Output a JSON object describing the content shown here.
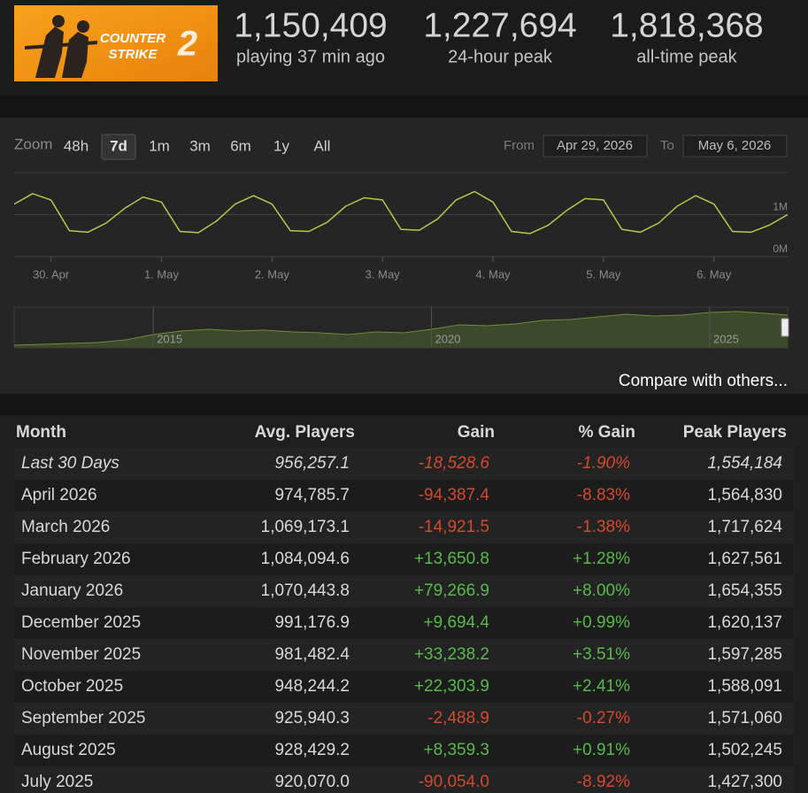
{
  "logo": {
    "line1": "COUNTER",
    "line2": "STRIKE",
    "mark": "2"
  },
  "stats": [
    {
      "value": "1,150,409",
      "label": "playing 37 min ago"
    },
    {
      "value": "1,227,694",
      "label": "24-hour peak"
    },
    {
      "value": "1,818,368",
      "label": "all-time peak"
    }
  ],
  "controls": {
    "zoom_label": "Zoom",
    "ranges": [
      "48h",
      "7d",
      "1m",
      "3m",
      "6m",
      "1y",
      "All"
    ],
    "selected": "7d",
    "from_label": "From",
    "from": "Apr 29, 2026",
    "to_label": "To",
    "to": "May 6, 2026"
  },
  "chart_data": [
    {
      "type": "line",
      "color": "#b3c94a",
      "grid": true,
      "xlim": [
        -8,
        160
      ],
      "xticks": [
        {
          "value": 0,
          "label": "30. Apr"
        },
        {
          "value": 24,
          "label": "1. May"
        },
        {
          "value": 48,
          "label": "2. May"
        },
        {
          "value": 72,
          "label": "3. May"
        },
        {
          "value": 96,
          "label": "4. May"
        },
        {
          "value": 120,
          "label": "5. May"
        },
        {
          "value": 144,
          "label": "6. May"
        }
      ],
      "ylim": [
        0,
        2000000
      ],
      "yticks": [
        {
          "value": 0,
          "label": "0M"
        },
        {
          "value": 1000000,
          "label": "1M"
        }
      ],
      "series": [
        {
          "x": [
            -8,
            -4,
            0,
            4,
            8,
            12,
            16,
            20,
            24,
            28,
            32,
            36,
            40,
            44,
            48,
            52,
            56,
            60,
            64,
            68,
            72,
            76,
            80,
            84,
            88,
            92,
            96,
            100,
            104,
            108,
            112,
            116,
            120,
            124,
            128,
            132,
            136,
            140,
            144,
            148,
            152,
            156,
            160
          ],
          "values": [
            1250000,
            1500000,
            1350000,
            620000,
            580000,
            800000,
            1150000,
            1420000,
            1300000,
            600000,
            570000,
            850000,
            1250000,
            1450000,
            1250000,
            620000,
            600000,
            820000,
            1200000,
            1400000,
            1350000,
            650000,
            630000,
            900000,
            1350000,
            1550000,
            1300000,
            600000,
            550000,
            750000,
            1100000,
            1380000,
            1350000,
            650000,
            580000,
            800000,
            1200000,
            1450000,
            1250000,
            600000,
            580000,
            750000,
            1000000
          ]
        }
      ]
    },
    {
      "type": "area",
      "color": "#6d8a3a",
      "fill": "#3b4a2b",
      "xlim": [
        2012.5,
        2026.4
      ],
      "xticks": [
        2015,
        2020,
        2025
      ],
      "ylim": [
        0,
        2000000
      ],
      "series": [
        {
          "x": [
            2012.5,
            2013,
            2013.5,
            2014,
            2014.5,
            2015,
            2015.5,
            2016,
            2016.5,
            2017,
            2017.5,
            2018,
            2018.5,
            2019,
            2019.5,
            2020,
            2020.5,
            2021,
            2021.5,
            2022,
            2022.5,
            2023,
            2023.5,
            2024,
            2024.5,
            2025,
            2025.5,
            2026,
            2026.4
          ],
          "values": [
            130000,
            174000,
            217000,
            261000,
            391000,
            652000,
            826000,
            913000,
            826000,
            870000,
            783000,
            739000,
            652000,
            783000,
            739000,
            913000,
            1130000,
            1087000,
            1174000,
            1348000,
            1391000,
            1522000,
            1652000,
            1565000,
            1609000,
            1739000,
            1783000,
            1696000,
            1609000
          ]
        }
      ]
    }
  ],
  "compare_link": "Compare with others...",
  "table": {
    "headers": [
      "Month",
      "Avg. Players",
      "Gain",
      "% Gain",
      "Peak Players"
    ],
    "positive_color": "#58b84a",
    "negative_color": "#d2492c",
    "rows": [
      [
        "Last 30 Days",
        "956,257.1",
        "-18,528.6",
        "-1.90%",
        "1,554,184"
      ],
      [
        "April 2026",
        "974,785.7",
        "-94,387.4",
        "-8.83%",
        "1,564,830"
      ],
      [
        "March 2026",
        "1,069,173.1",
        "-14,921.5",
        "-1.38%",
        "1,717,624"
      ],
      [
        "February 2026",
        "1,084,094.6",
        "+13,650.8",
        "+1.28%",
        "1,627,561"
      ],
      [
        "January 2026",
        "1,070,443.8",
        "+79,266.9",
        "+8.00%",
        "1,654,355"
      ],
      [
        "December 2025",
        "991,176.9",
        "+9,694.4",
        "+0.99%",
        "1,620,137"
      ],
      [
        "November 2025",
        "981,482.4",
        "+33,238.2",
        "+3.51%",
        "1,597,285"
      ],
      [
        "October 2025",
        "948,244.2",
        "+22,303.9",
        "+2.41%",
        "1,588,091"
      ],
      [
        "September 2025",
        "925,940.3",
        "-2,488.9",
        "-0.27%",
        "1,571,060"
      ],
      [
        "August 2025",
        "928,429.2",
        "+8,359.3",
        "+0.91%",
        "1,502,245"
      ],
      [
        "July 2025",
        "920,070.0",
        "-90,054.0",
        "-8.92%",
        "1,427,300"
      ]
    ]
  }
}
